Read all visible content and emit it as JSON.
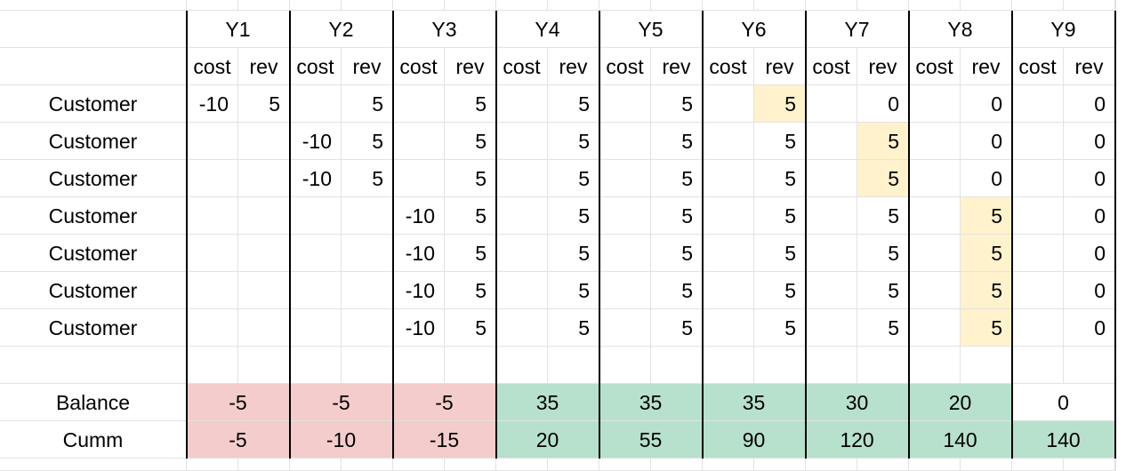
{
  "sheet": {
    "years": [
      "Y1",
      "Y2",
      "Y3",
      "Y4",
      "Y5",
      "Y6",
      "Y7",
      "Y8",
      "Y9"
    ],
    "sub_headers": {
      "cost": "cost",
      "rev": "rev"
    },
    "rows": [
      {
        "label": "Customer",
        "cells": [
          "-10",
          "5",
          "",
          "5",
          "",
          "5",
          "",
          "5",
          "",
          "5",
          "",
          "5",
          "",
          "0",
          "",
          "0",
          "",
          "0"
        ]
      },
      {
        "label": "Customer",
        "cells": [
          "",
          "",
          "-10",
          "5",
          "",
          "5",
          "",
          "5",
          "",
          "5",
          "",
          "5",
          "",
          "5",
          "",
          "0",
          "",
          "0"
        ]
      },
      {
        "label": "Customer",
        "cells": [
          "",
          "",
          "-10",
          "5",
          "",
          "5",
          "",
          "5",
          "",
          "5",
          "",
          "5",
          "",
          "5",
          "",
          "0",
          "",
          "0"
        ]
      },
      {
        "label": "Customer",
        "cells": [
          "",
          "",
          "",
          "",
          "-10",
          "5",
          "",
          "5",
          "",
          "5",
          "",
          "5",
          "",
          "5",
          "",
          "5",
          "",
          "0"
        ]
      },
      {
        "label": "Customer",
        "cells": [
          "",
          "",
          "",
          "",
          "-10",
          "5",
          "",
          "5",
          "",
          "5",
          "",
          "5",
          "",
          "5",
          "",
          "5",
          "",
          "0"
        ]
      },
      {
        "label": "Customer",
        "cells": [
          "",
          "",
          "",
          "",
          "-10",
          "5",
          "",
          "5",
          "",
          "5",
          "",
          "5",
          "",
          "5",
          "",
          "5",
          "",
          "0"
        ]
      },
      {
        "label": "Customer",
        "cells": [
          "",
          "",
          "",
          "",
          "-10",
          "5",
          "",
          "5",
          "",
          "5",
          "",
          "5",
          "",
          "5",
          "",
          "5",
          "",
          "0"
        ]
      }
    ],
    "highlights": [
      {
        "row": 0,
        "col": 11
      },
      {
        "row": 1,
        "col": 13
      },
      {
        "row": 2,
        "col": 13
      },
      {
        "row": 3,
        "col": 15
      },
      {
        "row": 4,
        "col": 15
      },
      {
        "row": 5,
        "col": 15
      },
      {
        "row": 6,
        "col": 15
      }
    ],
    "balance": {
      "label": "Balance",
      "values": [
        "-5",
        "-5",
        "-5",
        "35",
        "35",
        "35",
        "30",
        "20",
        "0"
      ]
    },
    "cumm": {
      "label": "Cumm",
      "values": [
        "-5",
        "-10",
        "-15",
        "20",
        "55",
        "90",
        "120",
        "140",
        "140"
      ]
    },
    "colors": {
      "negative": "#f4cccc",
      "positive": "#b7e1cd",
      "highlight": "#fff2cc",
      "gridline": "#e2e2e2",
      "divider": "#000000"
    }
  }
}
